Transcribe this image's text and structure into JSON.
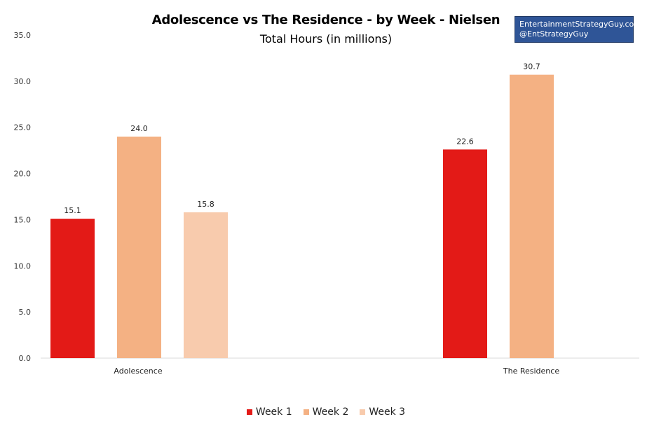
{
  "chart_data": {
    "type": "bar",
    "title": "Adolescence vs The Residence - by Week - Nielsen",
    "subtitle": "Total Hours (in millions)",
    "categories": [
      "Adolescence",
      "The Residence"
    ],
    "series": [
      {
        "name": "Week 1",
        "color": "#e31a17",
        "values": [
          15.1,
          22.6
        ]
      },
      {
        "name": "Week 2",
        "color": "#f4b183",
        "values": [
          24.0,
          30.7
        ]
      },
      {
        "name": "Week 3",
        "color": "#f8cbad",
        "values": [
          15.8,
          null
        ]
      }
    ],
    "ylim": [
      0,
      35
    ],
    "yticks": [
      "0.0",
      "5.0",
      "10.0",
      "15.0",
      "20.0",
      "25.0",
      "30.0",
      "35.0"
    ],
    "data_labels": [
      [
        "15.1",
        "22.6"
      ],
      [
        "24.0",
        "30.7"
      ],
      [
        "15.8",
        null
      ]
    ],
    "legend_position": "bottom",
    "grid": false
  },
  "credit": {
    "line1": "EntertainmentStrategyGuy.com",
    "line2": "@EntStrategyGuy"
  }
}
